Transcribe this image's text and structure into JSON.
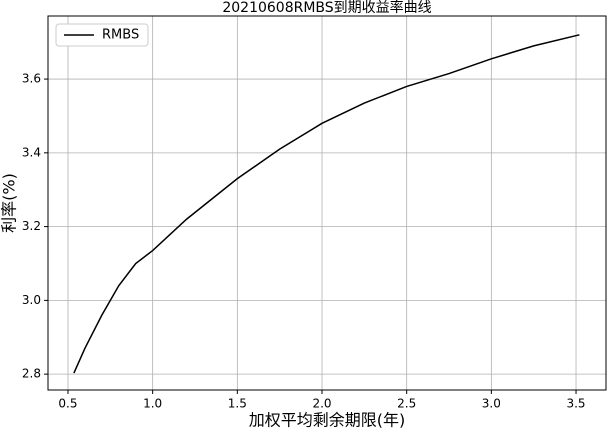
{
  "chart_data": {
    "type": "line",
    "title": "20210608RMBS到期收益率曲线",
    "x_label": "加权平均剩余期限(年)",
    "y_label": "利率(%)",
    "x": [
      0.535,
      0.6,
      0.7,
      0.8,
      0.9,
      1.0,
      1.2,
      1.5,
      1.75,
      2.0,
      2.25,
      2.5,
      2.75,
      3.0,
      3.25,
      3.52
    ],
    "series": [
      {
        "name": "RMBS",
        "color": "#000000",
        "values": [
          2.803,
          2.87,
          2.96,
          3.04,
          3.1,
          3.135,
          3.22,
          3.33,
          3.41,
          3.48,
          3.535,
          3.58,
          3.615,
          3.655,
          3.69,
          3.72
        ]
      }
    ],
    "xlim": [
      0.382,
      3.677
    ],
    "xticks": [
      0.5,
      {
        "value": 1.0,
        "label": "1.0"
      },
      1.5,
      {
        "value": 2.0,
        "label": "2.0"
      },
      2.5,
      {
        "value": 3.0,
        "label": "3.0"
      },
      3.5
    ],
    "ylim": [
      2.757,
      3.771
    ],
    "yticks": [
      2.8,
      {
        "value": 3.0,
        "label": "3.0"
      },
      3.2,
      3.4,
      3.6
    ],
    "grid": true,
    "legend": "upper-left"
  }
}
